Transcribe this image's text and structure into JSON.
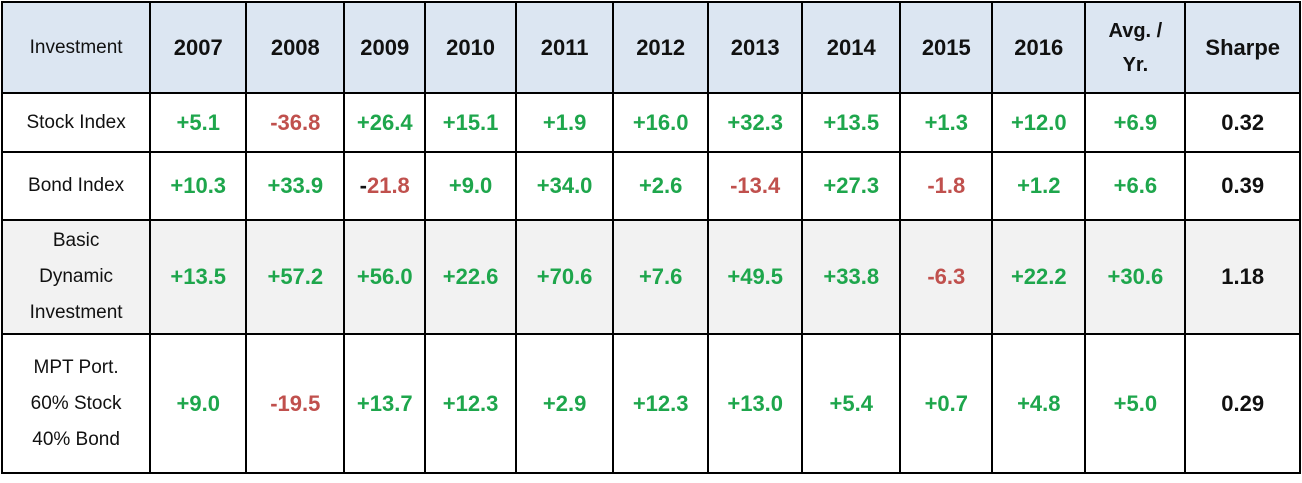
{
  "table": {
    "headers": [
      "Investment",
      "2007",
      "2008",
      "2009",
      "2010",
      "2011",
      "2012",
      "2013",
      "2014",
      "2015",
      "2016",
      "Avg. / Yr.",
      "Sharpe"
    ],
    "avg_header_lines": [
      "Avg. /",
      "Yr."
    ],
    "rows": [
      {
        "label_lines": [
          "Stock Index"
        ],
        "values": [
          "+5.1",
          "-36.8",
          "+26.4",
          "+15.1",
          "+1.9",
          "+16.0",
          "+32.3",
          "+13.5",
          "+1.3",
          "+12.0",
          "+6.9"
        ],
        "sharpe": "0.32"
      },
      {
        "label_lines": [
          "Bond Index"
        ],
        "values": [
          "+10.3",
          "+33.9",
          "-21.8",
          "+9.0",
          "+34.0",
          "+2.6",
          "-13.4",
          "+27.3",
          "-1.8",
          "+1.2",
          "+6.6"
        ],
        "sharpe": "0.39"
      },
      {
        "label_lines": [
          "Basic",
          "Dynamic",
          "Investment"
        ],
        "values": [
          "+13.5",
          "+57.2",
          "+56.0",
          "+22.6",
          "+70.6",
          "+7.6",
          "+49.5",
          "+33.8",
          "-6.3",
          "+22.2",
          "+30.6"
        ],
        "sharpe": "1.18"
      },
      {
        "label_lines": [
          "MPT Port.",
          "60% Stock",
          "40% Bond"
        ],
        "values": [
          "+9.0",
          "-19.5",
          "+13.7",
          "+12.3",
          "+2.9",
          "+12.3",
          "+13.0",
          "+5.4",
          "+0.7",
          "+4.8",
          "+5.0"
        ],
        "sharpe": "0.29"
      }
    ]
  },
  "colors": {
    "header_bg": "#dce6f2",
    "positive": "#1ea64c",
    "negative": "#c0504d",
    "highlight_row_bg": "#f2f2f2"
  }
}
